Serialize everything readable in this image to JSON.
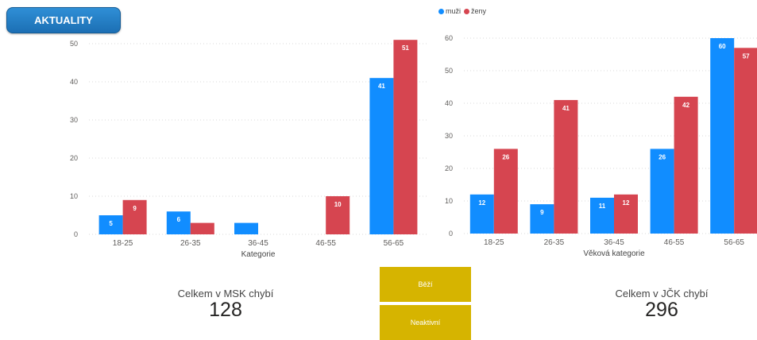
{
  "nav": {
    "aktuality_label": "AKTUALITY"
  },
  "legend": {
    "items": [
      {
        "label": "muži",
        "color": "#118dff"
      },
      {
        "label": "ženy",
        "color": "#d64550"
      }
    ]
  },
  "chart_data": [
    {
      "type": "bar",
      "title": "",
      "xlabel": "Kategorie",
      "ylabel": "",
      "categories": [
        "18-25",
        "26-35",
        "36-45",
        "46-55",
        "56-65"
      ],
      "series": [
        {
          "name": "muži",
          "color": "#118dff",
          "values": [
            5,
            6,
            3,
            0,
            41
          ]
        },
        {
          "name": "ženy",
          "color": "#d64550",
          "values": [
            9,
            3,
            0,
            10,
            51
          ]
        }
      ],
      "ylim": [
        0,
        50
      ],
      "yticks": [
        0,
        10,
        20,
        30,
        40,
        50
      ],
      "grid": true
    },
    {
      "type": "bar",
      "title": "",
      "xlabel": "Věková kategorie",
      "ylabel": "",
      "categories": [
        "18-25",
        "26-35",
        "36-45",
        "46-55",
        "56-65"
      ],
      "series": [
        {
          "name": "muži",
          "color": "#118dff",
          "values": [
            12,
            9,
            11,
            26,
            60
          ]
        },
        {
          "name": "ženy",
          "color": "#d64550",
          "values": [
            26,
            41,
            12,
            42,
            57
          ]
        }
      ],
      "ylim": [
        0,
        60
      ],
      "yticks": [
        0,
        10,
        20,
        30,
        40,
        50,
        60
      ],
      "grid": true,
      "legend": "top-left"
    }
  ],
  "cards": {
    "msk": {
      "label": "Celkem v MSK chybí",
      "value": "128"
    },
    "jck": {
      "label": "Celkem v JČK chybí",
      "value": "296"
    }
  },
  "slicer": {
    "bezi_label": "Běží",
    "neaktivni_label": "Neaktivní",
    "color": "#d6b400"
  }
}
